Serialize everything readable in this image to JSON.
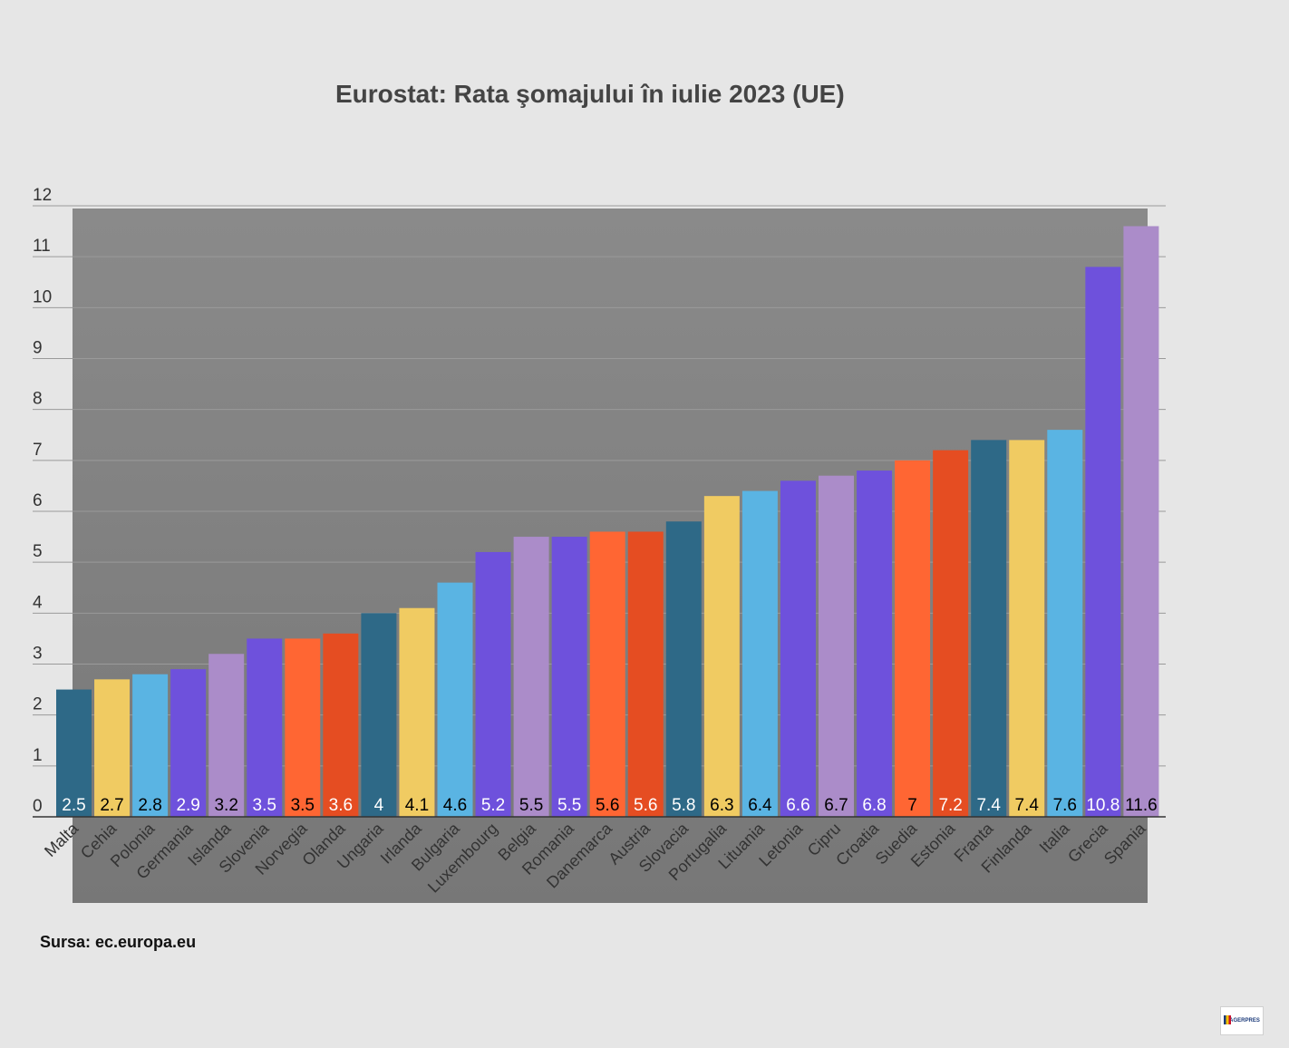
{
  "source": "Sursa: ec.europa.eu",
  "logo_text": "AGERPRES",
  "chart_data": {
    "type": "bar",
    "title": "Eurostat: Rata şomajului în iulie 2023 (UE)",
    "xlabel": "",
    "ylabel": "",
    "ylim": [
      0,
      12
    ],
    "yticks": [
      "0",
      "1",
      "2",
      "3",
      "4",
      "5",
      "6",
      "7",
      "8",
      "9",
      "10",
      "11",
      "12"
    ],
    "grid": true,
    "legend": "none",
    "categories": [
      "Malta",
      "Cehia",
      "Polonia",
      "Germania",
      "Islanda",
      "Slovenia",
      "Norvegia",
      "Olanda",
      "Ungaria",
      "Irlanda",
      "Bulgaria",
      "Luxembourg",
      "Belgia",
      "Romania",
      "Danemarca",
      "Austria",
      "Slovacia",
      "Portugalia",
      "Lituania",
      "Letonia",
      "Cipru",
      "Croatia",
      "Suedia",
      "Estonia",
      "Franta",
      "Finlanda",
      "Italia",
      "Grecia",
      "Spania"
    ],
    "values": [
      2.5,
      2.7,
      2.8,
      2.9,
      3.2,
      3.5,
      3.5,
      3.6,
      4,
      4.1,
      4.6,
      5.2,
      5.5,
      5.5,
      5.6,
      5.6,
      5.8,
      6.3,
      6.4,
      6.6,
      6.7,
      6.8,
      7,
      7.2,
      7.4,
      7.4,
      7.6,
      10.8,
      11.6
    ],
    "data_labels": [
      "2.5",
      "2.7",
      "2.8",
      "2.9",
      "3.2",
      "3.5",
      "3.5",
      "3.6",
      "4",
      "4.1",
      "4.6",
      "5.2",
      "5.5",
      "5.5",
      "5.6",
      "5.6",
      "5.8",
      "6.3",
      "6.4",
      "6.6",
      "6.7",
      "6.8",
      "7",
      "7.2",
      "7.4",
      "7.4",
      "7.6",
      "10.8",
      "11.6"
    ],
    "colors": [
      "#2e6987",
      "#f0cb62",
      "#5ab4e3",
      "#6e51dc",
      "#ab8cc9",
      "#6e51dc",
      "#ff6633",
      "#e54d22",
      "#2e6987",
      "#f0cb62",
      "#5ab4e3",
      "#6e51dc",
      "#ab8cc9",
      "#6e51dc",
      "#ff6633",
      "#e54d22",
      "#2e6987",
      "#f0cb62",
      "#5ab4e3",
      "#6e51dc",
      "#ab8cc9",
      "#6e51dc",
      "#ff6633",
      "#e54d22",
      "#2e6987",
      "#f0cb62",
      "#5ab4e3",
      "#6e51dc",
      "#ab8cc9"
    ],
    "label_colors": [
      "#ffffff",
      "#000000",
      "#000000",
      "#ffffff",
      "#000000",
      "#ffffff",
      "#000000",
      "#ffffff",
      "#ffffff",
      "#000000",
      "#000000",
      "#ffffff",
      "#000000",
      "#ffffff",
      "#000000",
      "#ffffff",
      "#ffffff",
      "#000000",
      "#000000",
      "#ffffff",
      "#000000",
      "#ffffff",
      "#000000",
      "#ffffff",
      "#ffffff",
      "#000000",
      "#000000",
      "#ffffff",
      "#000000"
    ]
  }
}
